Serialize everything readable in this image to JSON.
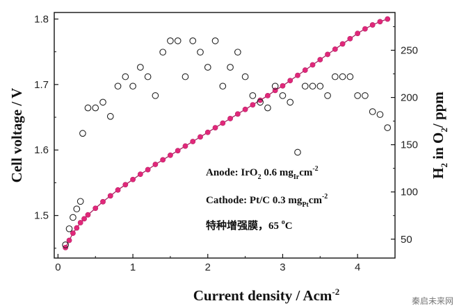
{
  "chart_data": {
    "type": "scatter",
    "xlabel": "Current density / Acm",
    "xlabel_sup": "-2",
    "ylabel_left": "Cell voltage / V",
    "ylabel_right_parts": [
      "H",
      "2",
      " in O",
      "2",
      "/ ppm"
    ],
    "xlim": [
      -0.05,
      4.5
    ],
    "ylim_left": [
      1.435,
      1.81
    ],
    "ylim_right": [
      30,
      290
    ],
    "x_ticks": [
      "0",
      "1",
      "2",
      "3",
      "4"
    ],
    "y_left_ticks": [
      "1.5",
      "1.6",
      "1.7",
      "1.8"
    ],
    "y_right_ticks": [
      "50",
      "100",
      "150",
      "200",
      "250"
    ],
    "grid": false,
    "annotations": [
      {
        "parts": [
          {
            "t": "Anode: IrO"
          },
          {
            "t": "2",
            "s": "sub"
          },
          {
            "t": " 0.6 mg"
          },
          {
            "t": "Ir",
            "s": "sub"
          },
          {
            "t": "cm"
          },
          {
            "t": "-2",
            "s": "sup"
          }
        ]
      },
      {
        "parts": [
          {
            "t": "Cathode: Pt/C 0.3 mg"
          },
          {
            "t": "Pt",
            "s": "sub"
          },
          {
            "t": "cm"
          },
          {
            "t": "-2",
            "s": "sup"
          }
        ]
      },
      {
        "parts": [
          {
            "t": "特种增强膜，65 "
          },
          {
            "t": "o",
            "s": "sup"
          },
          {
            "t": "C"
          }
        ]
      }
    ],
    "series": [
      {
        "axis": "left",
        "marker": "filled-circle-line",
        "color": "#e0287a",
        "x": [
          0.1,
          0.15,
          0.2,
          0.25,
          0.3,
          0.35,
          0.4,
          0.5,
          0.6,
          0.7,
          0.8,
          0.9,
          1.0,
          1.1,
          1.2,
          1.3,
          1.4,
          1.5,
          1.6,
          1.7,
          1.8,
          1.9,
          2.0,
          2.1,
          2.2,
          2.3,
          2.4,
          2.5,
          2.6,
          2.7,
          2.8,
          2.9,
          3.0,
          3.1,
          3.2,
          3.3,
          3.4,
          3.5,
          3.6,
          3.7,
          3.8,
          3.9,
          4.0,
          4.1,
          4.2,
          4.3,
          4.4
        ],
        "values": [
          1.451,
          1.462,
          1.473,
          1.481,
          1.489,
          1.495,
          1.501,
          1.511,
          1.521,
          1.53,
          1.539,
          1.547,
          1.555,
          1.563,
          1.57,
          1.578,
          1.585,
          1.592,
          1.599,
          1.606,
          1.613,
          1.62,
          1.627,
          1.634,
          1.641,
          1.648,
          1.655,
          1.662,
          1.669,
          1.676,
          1.683,
          1.691,
          1.698,
          1.706,
          1.714,
          1.722,
          1.73,
          1.738,
          1.746,
          1.754,
          1.762,
          1.77,
          1.778,
          1.785,
          1.791,
          1.796,
          1.8
        ]
      },
      {
        "axis": "right",
        "marker": "open-circle",
        "color": "#222222",
        "x": [
          0.1,
          0.15,
          0.2,
          0.25,
          0.3,
          0.33,
          0.4,
          0.5,
          0.6,
          0.7,
          0.8,
          0.9,
          1.0,
          1.1,
          1.2,
          1.3,
          1.4,
          1.5,
          1.6,
          1.7,
          1.8,
          1.9,
          2.0,
          2.1,
          2.2,
          2.3,
          2.4,
          2.5,
          2.6,
          2.7,
          2.8,
          2.9,
          3.0,
          3.1,
          3.2,
          3.3,
          3.4,
          3.5,
          3.6,
          3.7,
          3.8,
          3.9,
          4.0,
          4.1,
          4.2,
          4.3,
          4.4
        ],
        "values": [
          44,
          61,
          73,
          82,
          90,
          162,
          189,
          189,
          195,
          180,
          212,
          222,
          212,
          232,
          222,
          202,
          248,
          260,
          260,
          222,
          260,
          248,
          232,
          260,
          212,
          232,
          248,
          222,
          202,
          195,
          189,
          212,
          202,
          195,
          142,
          212,
          212,
          212,
          202,
          222,
          222,
          222,
          202,
          202,
          185,
          182,
          168
        ]
      }
    ]
  },
  "watermark": "秦启未来网"
}
